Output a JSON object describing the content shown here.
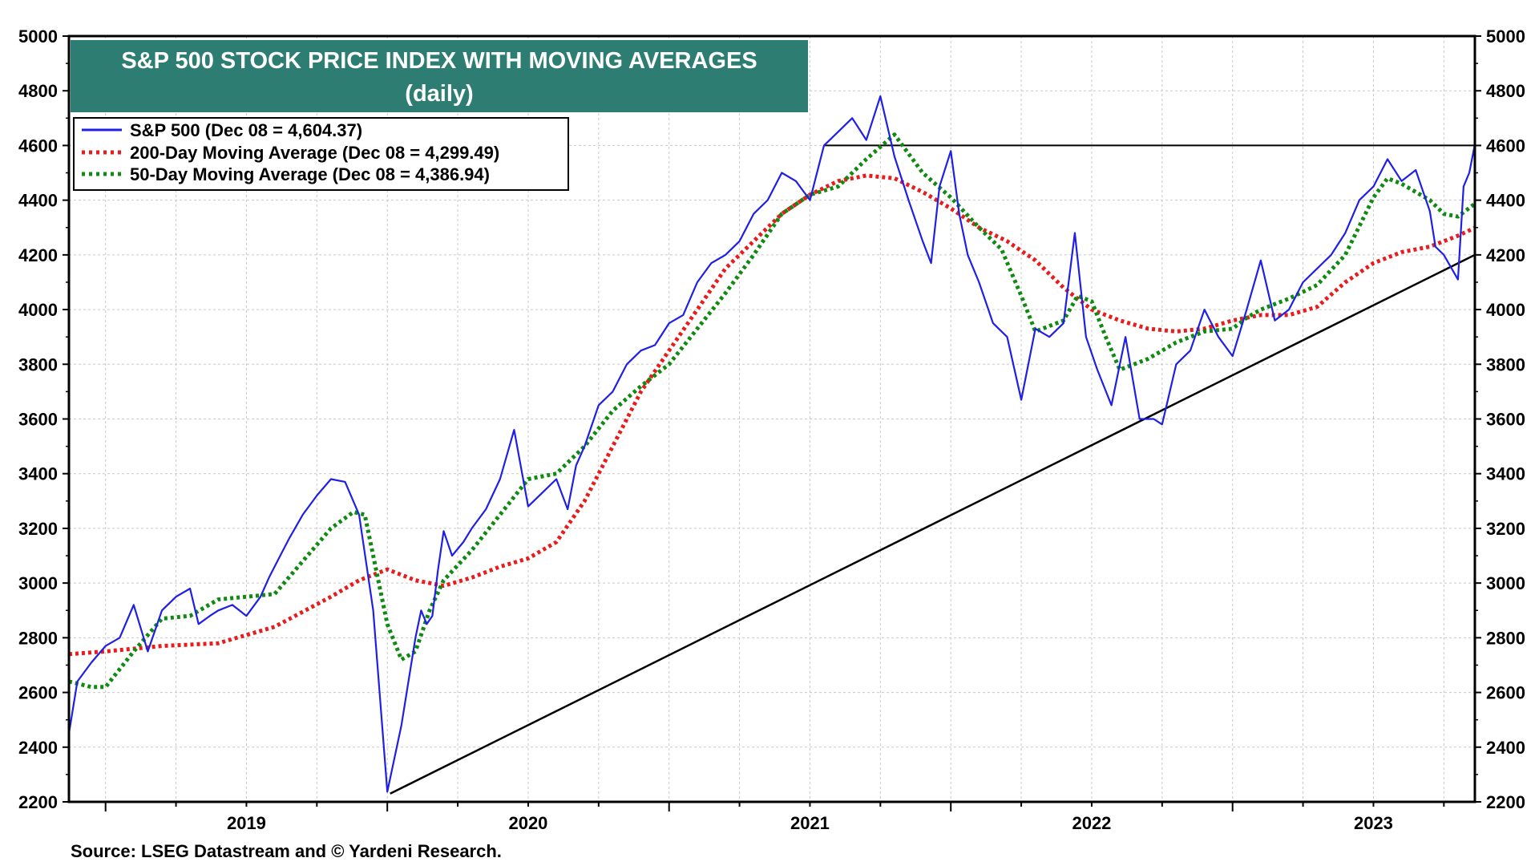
{
  "chart_data": {
    "type": "line",
    "title": "S&P 500 STOCK PRICE INDEX WITH MOVING AVERAGES",
    "subtitle": "(daily)",
    "source": "Source: LSEG Datastream and © Yardeni Research.",
    "ylim": [
      2200,
      5000
    ],
    "yticks": [
      2200,
      2400,
      2600,
      2800,
      3000,
      3200,
      3400,
      3600,
      3800,
      4000,
      4200,
      4400,
      4600,
      4800,
      5000
    ],
    "xlim": [
      2018.87,
      2023.86
    ],
    "xticks": [
      {
        "label": "2019",
        "value": 2019.5
      },
      {
        "label": "2020",
        "value": 2020.5
      },
      {
        "label": "2021",
        "value": 2021.5
      },
      {
        "label": "2022",
        "value": 2022.5
      },
      {
        "label": "2023",
        "value": 2023.5
      }
    ],
    "year_boundaries": [
      2019,
      2020,
      2021,
      2022,
      2023
    ],
    "legend": {
      "position": "top-left",
      "entries": [
        {
          "label": "S&P 500 (Dec 08 = 4,604.37)",
          "color": "#1f1fe6",
          "style": "solid"
        },
        {
          "label": "200-Day Moving Average (Dec 08 = 4,299.49)",
          "color": "#e81c1c",
          "style": "dotted"
        },
        {
          "label": "50-Day Moving Average (Dec 08 = 4,386.94)",
          "color": "#108a10",
          "style": "dotted"
        }
      ]
    },
    "series": [
      {
        "name": "S&P 500",
        "color": "#1f1fe6",
        "style": "solid",
        "x": [
          2018.87,
          2018.9,
          2018.95,
          2019.0,
          2019.05,
          2019.1,
          2019.15,
          2019.2,
          2019.25,
          2019.3,
          2019.33,
          2019.37,
          2019.4,
          2019.45,
          2019.5,
          2019.55,
          2019.58,
          2019.62,
          2019.65,
          2019.7,
          2019.75,
          2019.8,
          2019.85,
          2019.9,
          2019.95,
          2020.0,
          2020.05,
          2020.1,
          2020.12,
          2020.14,
          2020.16,
          2020.18,
          2020.2,
          2020.23,
          2020.27,
          2020.3,
          2020.35,
          2020.4,
          2020.45,
          2020.5,
          2020.55,
          2020.6,
          2020.64,
          2020.67,
          2020.7,
          2020.75,
          2020.8,
          2020.85,
          2020.9,
          2020.95,
          2021.0,
          2021.05,
          2021.1,
          2021.15,
          2021.2,
          2021.25,
          2021.3,
          2021.35,
          2021.4,
          2021.45,
          2021.5,
          2021.55,
          2021.6,
          2021.65,
          2021.7,
          2021.75,
          2021.8,
          2021.85,
          2021.9,
          2021.93,
          2021.96,
          2022.0,
          2022.03,
          2022.06,
          2022.1,
          2022.15,
          2022.2,
          2022.25,
          2022.3,
          2022.35,
          2022.4,
          2022.44,
          2022.48,
          2022.52,
          2022.57,
          2022.62,
          2022.67,
          2022.72,
          2022.75,
          2022.8,
          2022.85,
          2022.9,
          2022.95,
          2023.0,
          2023.05,
          2023.1,
          2023.15,
          2023.2,
          2023.25,
          2023.3,
          2023.35,
          2023.4,
          2023.45,
          2023.5,
          2023.55,
          2023.6,
          2023.65,
          2023.7,
          2023.72,
          2023.75,
          2023.8,
          2023.82,
          2023.84,
          2023.86
        ],
        "values": [
          2450,
          2640,
          2710,
          2770,
          2800,
          2920,
          2750,
          2900,
          2950,
          2980,
          2850,
          2880,
          2900,
          2920,
          2880,
          2950,
          3020,
          3100,
          3160,
          3250,
          3320,
          3380,
          3370,
          3250,
          2900,
          2237,
          2480,
          2800,
          2900,
          2850,
          2880,
          3050,
          3190,
          3100,
          3150,
          3200,
          3270,
          3380,
          3560,
          3280,
          3330,
          3380,
          3270,
          3430,
          3500,
          3650,
          3700,
          3800,
          3850,
          3870,
          3950,
          3980,
          4100,
          4170,
          4200,
          4250,
          4350,
          4400,
          4500,
          4470,
          4400,
          4600,
          4650,
          4700,
          4620,
          4780,
          4560,
          4400,
          4250,
          4170,
          4450,
          4580,
          4350,
          4200,
          4100,
          3950,
          3900,
          3670,
          3930,
          3900,
          3950,
          4280,
          3900,
          3780,
          3650,
          3900,
          3600,
          3600,
          3580,
          3800,
          3850,
          4000,
          3900,
          3830,
          4000,
          4180,
          3960,
          4000,
          4100,
          4150,
          4200,
          4280,
          4400,
          4450,
          4550,
          4470,
          4510,
          4360,
          4230,
          4200,
          4110,
          4450,
          4500,
          4604
        ]
      },
      {
        "name": "200-Day Moving Average",
        "color": "#e81c1c",
        "style": "dotted",
        "x": [
          2018.87,
          2019.0,
          2019.2,
          2019.4,
          2019.6,
          2019.8,
          2019.9,
          2020.0,
          2020.1,
          2020.2,
          2020.3,
          2020.4,
          2020.5,
          2020.6,
          2020.7,
          2020.8,
          2020.9,
          2021.0,
          2021.1,
          2021.2,
          2021.3,
          2021.4,
          2021.5,
          2021.6,
          2021.65,
          2021.7,
          2021.8,
          2021.9,
          2022.0,
          2022.1,
          2022.2,
          2022.3,
          2022.4,
          2022.5,
          2022.6,
          2022.7,
          2022.8,
          2022.9,
          2023.0,
          2023.1,
          2023.2,
          2023.3,
          2023.4,
          2023.5,
          2023.6,
          2023.7,
          2023.8,
          2023.86
        ],
        "values": [
          2740,
          2750,
          2770,
          2780,
          2840,
          2950,
          3010,
          3050,
          3010,
          2990,
          3020,
          3060,
          3090,
          3150,
          3300,
          3500,
          3700,
          3850,
          4000,
          4150,
          4250,
          4350,
          4420,
          4470,
          4480,
          4490,
          4480,
          4430,
          4370,
          4300,
          4250,
          4180,
          4080,
          4000,
          3960,
          3930,
          3920,
          3930,
          3960,
          3980,
          3980,
          4010,
          4100,
          4170,
          4210,
          4230,
          4270,
          4299
        ]
      },
      {
        "name": "50-Day Moving Average",
        "color": "#108a10",
        "style": "dotted",
        "x": [
          2018.87,
          2018.95,
          2019.0,
          2019.1,
          2019.2,
          2019.3,
          2019.4,
          2019.5,
          2019.6,
          2019.7,
          2019.8,
          2019.88,
          2019.92,
          2019.95,
          2020.0,
          2020.05,
          2020.1,
          2020.15,
          2020.2,
          2020.3,
          2020.4,
          2020.5,
          2020.6,
          2020.7,
          2020.8,
          2020.9,
          2021.0,
          2021.1,
          2021.2,
          2021.3,
          2021.4,
          2021.5,
          2021.6,
          2021.7,
          2021.8,
          2021.9,
          2022.0,
          2022.1,
          2022.18,
          2022.25,
          2022.3,
          2022.4,
          2022.45,
          2022.5,
          2022.55,
          2022.6,
          2022.7,
          2022.8,
          2022.9,
          2023.0,
          2023.05,
          2023.1,
          2023.2,
          2023.3,
          2023.4,
          2023.5,
          2023.55,
          2023.6,
          2023.7,
          2023.75,
          2023.8,
          2023.86
        ],
        "values": [
          2640,
          2620,
          2620,
          2750,
          2870,
          2880,
          2940,
          2950,
          2960,
          3080,
          3200,
          3260,
          3250,
          3100,
          2850,
          2720,
          2750,
          2900,
          3010,
          3120,
          3250,
          3380,
          3400,
          3500,
          3630,
          3720,
          3800,
          3930,
          4060,
          4200,
          4350,
          4420,
          4450,
          4550,
          4640,
          4500,
          4410,
          4300,
          4220,
          4050,
          3920,
          3960,
          4050,
          4030,
          3900,
          3780,
          3820,
          3880,
          3920,
          3930,
          3970,
          4000,
          4040,
          4090,
          4200,
          4410,
          4480,
          4460,
          4400,
          4350,
          4340,
          4387
        ]
      }
    ],
    "reference_lines": [
      {
        "name": "horizontal resistance",
        "y": 4600,
        "x_from": 2021.55,
        "x_to": 2023.86,
        "color": "#000000"
      },
      {
        "name": "support trendline",
        "from": {
          "x": 2020.01,
          "y": 2230
        },
        "to": {
          "x": 2023.86,
          "y": 4200
        },
        "color": "#000000"
      }
    ]
  },
  "colors": {
    "title_bg": "#2e7d72",
    "gridline": "#c8c8c8",
    "frame": "#000000"
  }
}
